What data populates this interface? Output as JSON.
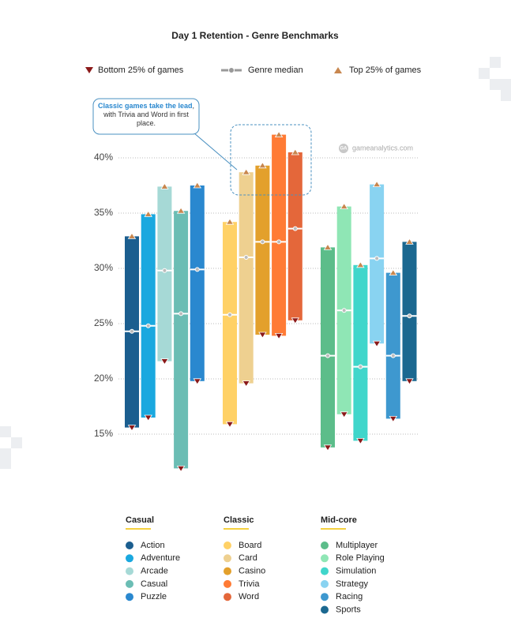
{
  "chart_data": {
    "type": "floating-bar",
    "title": "Day 1 Retention - Genre Benchmarks",
    "legend": {
      "bottom": "Bottom 25% of games",
      "median": "Genre median",
      "top": "Top 25% of games"
    },
    "annotation": {
      "bold": "Classic games take the lead",
      "text": ", with Trivia and Word in first place."
    },
    "watermark": {
      "logo": "GA",
      "text": "gameanalytics.com"
    },
    "ylim": [
      11,
      43.5
    ],
    "yticks": [
      {
        "value": 15,
        "label": "15%"
      },
      {
        "value": 20,
        "label": "20%"
      },
      {
        "value": 25,
        "label": "25%"
      },
      {
        "value": 30,
        "label": "30%"
      },
      {
        "value": 35,
        "label": "35%"
      },
      {
        "value": 40,
        "label": "40%"
      }
    ],
    "grid": true,
    "groups": [
      {
        "name": "Casual",
        "series": [
          {
            "name": "Action",
            "color": "#1b5e8f",
            "top": 32.9,
            "median": 24.3,
            "bottom": 15.6
          },
          {
            "name": "Adventure",
            "color": "#1aa8df",
            "top": 34.9,
            "median": 24.8,
            "bottom": 16.5
          },
          {
            "name": "Arcade",
            "color": "#a6d9d6",
            "top": 37.4,
            "median": 29.8,
            "bottom": 21.6
          },
          {
            "name": "Casual",
            "color": "#6bbdb4",
            "top": 35.2,
            "median": 25.9,
            "bottom": 11.9
          },
          {
            "name": "Puzzle",
            "color": "#2a88cf",
            "top": 37.5,
            "median": 29.9,
            "bottom": 19.8
          }
        ]
      },
      {
        "name": "Classic",
        "series": [
          {
            "name": "Board",
            "color": "#ffd166",
            "top": 34.2,
            "median": 25.8,
            "bottom": 15.9
          },
          {
            "name": "Card",
            "color": "#eed090",
            "top": 38.7,
            "median": 31.0,
            "bottom": 19.6
          },
          {
            "name": "Casino",
            "color": "#e3a02c",
            "top": 39.3,
            "median": 32.4,
            "bottom": 24.0
          },
          {
            "name": "Trivia",
            "color": "#ff7b35",
            "top": 42.1,
            "median": 32.4,
            "bottom": 23.9
          },
          {
            "name": "Word",
            "color": "#e4673a",
            "top": 40.5,
            "median": 33.6,
            "bottom": 25.3
          }
        ]
      },
      {
        "name": "Mid-core",
        "series": [
          {
            "name": "Multiplayer",
            "color": "#5cbd8a",
            "top": 31.9,
            "median": 22.1,
            "bottom": 13.8
          },
          {
            "name": "Role Playing",
            "color": "#8fe6b5",
            "top": 35.6,
            "median": 26.2,
            "bottom": 16.8
          },
          {
            "name": "Simulation",
            "color": "#40d6cb",
            "top": 30.3,
            "median": 21.1,
            "bottom": 14.4
          },
          {
            "name": "Strategy",
            "color": "#89d3f1",
            "top": 37.6,
            "median": 30.9,
            "bottom": 23.2
          },
          {
            "name": "Racing",
            "color": "#3e98cf",
            "top": 29.6,
            "median": 22.1,
            "bottom": 16.4
          },
          {
            "name": "Sports",
            "color": "#1b6890",
            "top": 32.4,
            "median": 25.7,
            "bottom": 19.8
          }
        ]
      }
    ]
  }
}
